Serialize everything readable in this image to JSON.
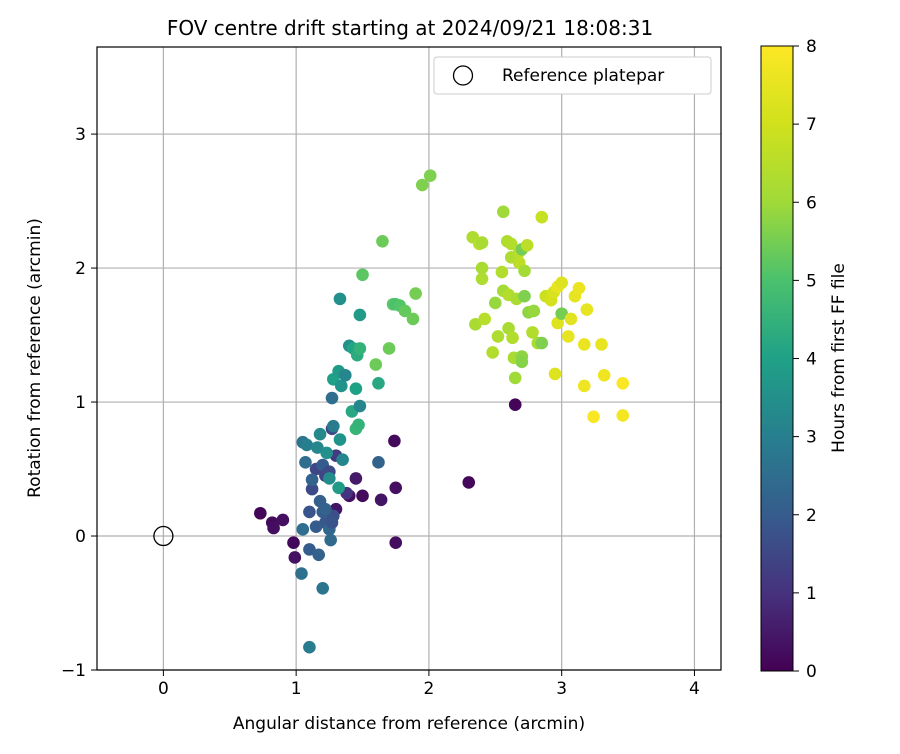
{
  "chart_data": {
    "type": "scatter",
    "title": "FOV centre drift starting at 2024/09/21 18:08:31",
    "xlabel": "Angular distance from reference (arcmin)",
    "ylabel": "Rotation from reference (arcmin)",
    "xlim": [
      -0.5,
      4.2
    ],
    "ylim": [
      -1,
      3.65
    ],
    "xticks": [
      0,
      1,
      2,
      3,
      4
    ],
    "yticks": [
      -1,
      0,
      1,
      2,
      3
    ],
    "xtick_labels": [
      "0",
      "1",
      "2",
      "3",
      "4"
    ],
    "ytick_labels": [
      "−1",
      "0",
      "1",
      "2",
      "3"
    ],
    "grid": true,
    "legend": {
      "position": "upper right",
      "entries": [
        "Reference platepar"
      ]
    },
    "reference_point": {
      "x": 0,
      "y": 0
    },
    "colorbar": {
      "label": "Hours from first FF file",
      "range": [
        0,
        8
      ],
      "ticks": [
        0,
        1,
        2,
        3,
        4,
        5,
        6,
        7,
        8
      ],
      "tick_labels": [
        "0",
        "1",
        "2",
        "3",
        "4",
        "5",
        "6",
        "7",
        "8"
      ],
      "colormap": "viridis"
    },
    "points": [
      [
        0.73,
        0.17,
        0.1
      ],
      [
        0.82,
        0.1,
        0.2
      ],
      [
        0.83,
        0.06,
        0.25
      ],
      [
        0.9,
        0.12,
        0.3
      ],
      [
        0.98,
        -0.05,
        0.15
      ],
      [
        0.99,
        -0.16,
        0.35
      ],
      [
        1.3,
        0.2,
        0.4
      ],
      [
        1.4,
        0.3,
        0.3
      ],
      [
        1.5,
        0.3,
        0.2
      ],
      [
        1.45,
        0.43,
        0.5
      ],
      [
        1.64,
        0.27,
        0.4
      ],
      [
        1.75,
        0.36,
        0.3
      ],
      [
        1.74,
        0.71,
        0.2
      ],
      [
        1.75,
        -0.05,
        0.25
      ],
      [
        2.3,
        0.4,
        0.15
      ],
      [
        2.65,
        0.98,
        0.1
      ],
      [
        1.05,
        0.05,
        2.5
      ],
      [
        1.04,
        -0.28,
        2.6
      ],
      [
        1.1,
        -0.1,
        2.0
      ],
      [
        1.17,
        -0.14,
        2.2
      ],
      [
        1.2,
        -0.39,
        2.7
      ],
      [
        1.1,
        -0.83,
        2.9
      ],
      [
        1.1,
        0.18,
        1.8
      ],
      [
        1.12,
        0.35,
        1.6
      ],
      [
        1.18,
        0.26,
        2.1
      ],
      [
        1.22,
        0.1,
        1.9
      ],
      [
        1.25,
        0.05,
        2.3
      ],
      [
        1.26,
        -0.03,
        2.4
      ],
      [
        1.15,
        0.07,
        2.0
      ],
      [
        1.2,
        0.18,
        2.0
      ],
      [
        1.28,
        0.15,
        1.7
      ],
      [
        1.22,
        0.2,
        2.2
      ],
      [
        1.15,
        0.5,
        1.5
      ],
      [
        1.2,
        0.53,
        2.0
      ],
      [
        1.22,
        0.45,
        1.4
      ],
      [
        1.25,
        0.48,
        1.6
      ],
      [
        1.12,
        0.42,
        2.2
      ],
      [
        1.27,
        0.1,
        1.8
      ],
      [
        1.3,
        0.6,
        1.2
      ],
      [
        1.27,
        0.8,
        1.5
      ],
      [
        1.62,
        0.55,
        2.2
      ],
      [
        1.38,
        0.32,
        1.0
      ],
      [
        1.05,
        0.7,
        2.7
      ],
      [
        1.08,
        0.68,
        3.0
      ],
      [
        1.07,
        0.55,
        2.5
      ],
      [
        1.16,
        0.66,
        3.2
      ],
      [
        1.18,
        0.76,
        3.3
      ],
      [
        1.23,
        0.62,
        3.5
      ],
      [
        1.25,
        0.43,
        3.4
      ],
      [
        1.28,
        0.82,
        2.9
      ],
      [
        1.33,
        0.72,
        3.6
      ],
      [
        1.35,
        0.57,
        3.2
      ],
      [
        1.32,
        0.36,
        3.8
      ],
      [
        1.27,
        1.03,
        2.5
      ],
      [
        1.28,
        1.17,
        4.0
      ],
      [
        1.32,
        1.23,
        3.8
      ],
      [
        1.34,
        1.12,
        3.6
      ],
      [
        1.37,
        1.2,
        3.2
      ],
      [
        1.42,
        0.93,
        4.2
      ],
      [
        1.45,
        1.1,
        4.0
      ],
      [
        1.48,
        0.97,
        3.2
      ],
      [
        1.45,
        0.8,
        4.6
      ],
      [
        1.47,
        0.83,
        4.5
      ],
      [
        1.4,
        1.42,
        3.5
      ],
      [
        1.43,
        1.4,
        4.1
      ],
      [
        1.46,
        1.35,
        4.3
      ],
      [
        1.48,
        1.4,
        4.5
      ],
      [
        1.48,
        1.65,
        3.8
      ],
      [
        1.33,
        1.77,
        3.5
      ],
      [
        1.62,
        1.14,
        4.2
      ],
      [
        1.6,
        1.28,
        5.4
      ],
      [
        1.5,
        1.95,
        5.2
      ],
      [
        1.65,
        2.2,
        5.4
      ],
      [
        1.7,
        1.4,
        5.4
      ],
      [
        1.73,
        1.73,
        5.2
      ],
      [
        1.75,
        1.73,
        5.0
      ],
      [
        1.78,
        1.72,
        5.1
      ],
      [
        1.82,
        1.68,
        5.3
      ],
      [
        1.88,
        1.62,
        5.4
      ],
      [
        1.9,
        1.81,
        5.5
      ],
      [
        1.95,
        2.62,
        5.6
      ],
      [
        2.01,
        2.69,
        5.6
      ],
      [
        2.33,
        2.23,
        6.3
      ],
      [
        2.38,
        2.18,
        6.5
      ],
      [
        2.4,
        2.19,
        6.2
      ],
      [
        2.4,
        2.0,
        6.2
      ],
      [
        2.4,
        1.92,
        6.3
      ],
      [
        2.35,
        1.58,
        6.2
      ],
      [
        2.42,
        1.62,
        6.5
      ],
      [
        2.48,
        1.37,
        6.4
      ],
      [
        2.5,
        1.74,
        5.9
      ],
      [
        2.52,
        1.49,
        6.3
      ],
      [
        2.55,
        1.97,
        6.4
      ],
      [
        2.56,
        1.83,
        6.1
      ],
      [
        2.56,
        2.42,
        6.0
      ],
      [
        2.59,
        2.2,
        6.3
      ],
      [
        2.6,
        1.8,
        6.4
      ],
      [
        2.6,
        1.55,
        6.2
      ],
      [
        2.62,
        2.18,
        6.4
      ],
      [
        2.62,
        2.08,
        6.3
      ],
      [
        2.63,
        1.48,
        6.4
      ],
      [
        2.64,
        1.33,
        6.2
      ],
      [
        2.65,
        1.18,
        6.0
      ],
      [
        2.66,
        1.77,
        6.2
      ],
      [
        2.68,
        2.12,
        6.5
      ],
      [
        2.68,
        2.04,
        6.6
      ],
      [
        2.7,
        2.14,
        5.5
      ],
      [
        2.7,
        1.34,
        5.8
      ],
      [
        2.7,
        1.3,
        5.7
      ],
      [
        2.72,
        1.79,
        5.6
      ],
      [
        2.74,
        2.17,
        6.6
      ],
      [
        2.72,
        1.98,
        6.1
      ],
      [
        2.75,
        1.67,
        5.8
      ],
      [
        2.78,
        1.52,
        6.4
      ],
      [
        2.79,
        1.68,
        5.9
      ],
      [
        2.82,
        1.44,
        6.2
      ],
      [
        2.85,
        2.38,
        6.8
      ],
      [
        2.85,
        1.44,
        5.6
      ],
      [
        2.88,
        1.79,
        6.9
      ],
      [
        2.92,
        1.76,
        7.1
      ],
      [
        2.94,
        1.82,
        7.2
      ],
      [
        2.95,
        1.21,
        7.3
      ],
      [
        2.97,
        1.59,
        7.3
      ],
      [
        2.97,
        1.86,
        7.5
      ],
      [
        3.0,
        1.89,
        7.3
      ],
      [
        3.0,
        1.66,
        5.5
      ],
      [
        3.05,
        1.49,
        7.5
      ],
      [
        3.07,
        1.62,
        7.4
      ],
      [
        3.1,
        1.79,
        7.5
      ],
      [
        3.13,
        1.85,
        7.6
      ],
      [
        3.17,
        1.43,
        7.6
      ],
      [
        3.17,
        1.12,
        7.7
      ],
      [
        3.19,
        1.69,
        7.5
      ],
      [
        3.24,
        0.89,
        7.9
      ],
      [
        3.3,
        1.43,
        7.5
      ],
      [
        3.32,
        1.2,
        7.7
      ],
      [
        3.46,
        1.14,
        7.9
      ],
      [
        3.46,
        0.9,
        7.8
      ]
    ]
  }
}
